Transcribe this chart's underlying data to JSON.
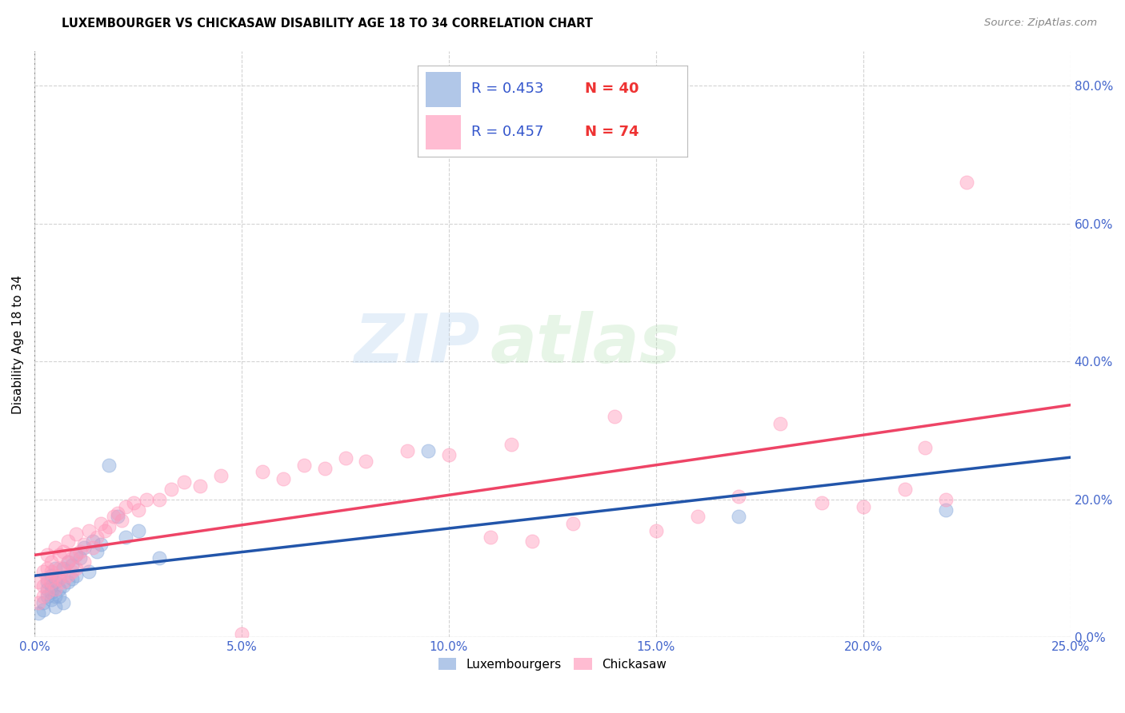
{
  "title": "LUXEMBOURGER VS CHICKASAW DISABILITY AGE 18 TO 34 CORRELATION CHART",
  "source": "Source: ZipAtlas.com",
  "ylabel": "Disability Age 18 to 34",
  "xlim": [
    0.0,
    0.25
  ],
  "ylim": [
    0.0,
    0.85
  ],
  "blue_color": "#88AADD",
  "pink_color": "#FF99BB",
  "blue_line_color": "#2255AA",
  "pink_line_color": "#EE4466",
  "legend_R_color": "#3355CC",
  "legend_N_color": "#EE3333",
  "watermark_zip": "ZIP",
  "watermark_atlas": "atlas",
  "legend_blue_R": "0.453",
  "legend_blue_N": "40",
  "legend_pink_R": "0.457",
  "legend_pink_N": "74",
  "blue_scatter_x": [
    0.001,
    0.002,
    0.002,
    0.003,
    0.003,
    0.003,
    0.004,
    0.004,
    0.004,
    0.004,
    0.005,
    0.005,
    0.005,
    0.005,
    0.006,
    0.006,
    0.006,
    0.007,
    0.007,
    0.007,
    0.008,
    0.008,
    0.009,
    0.009,
    0.01,
    0.01,
    0.011,
    0.012,
    0.013,
    0.014,
    0.015,
    0.016,
    0.018,
    0.02,
    0.022,
    0.025,
    0.03,
    0.095,
    0.17,
    0.22
  ],
  "blue_scatter_y": [
    0.035,
    0.04,
    0.05,
    0.06,
    0.07,
    0.08,
    0.055,
    0.065,
    0.075,
    0.09,
    0.045,
    0.06,
    0.08,
    0.1,
    0.06,
    0.07,
    0.085,
    0.05,
    0.075,
    0.1,
    0.08,
    0.11,
    0.085,
    0.105,
    0.09,
    0.12,
    0.115,
    0.13,
    0.095,
    0.14,
    0.125,
    0.135,
    0.25,
    0.175,
    0.145,
    0.155,
    0.115,
    0.27,
    0.175,
    0.185
  ],
  "pink_scatter_x": [
    0.001,
    0.001,
    0.002,
    0.002,
    0.002,
    0.003,
    0.003,
    0.003,
    0.003,
    0.004,
    0.004,
    0.004,
    0.005,
    0.005,
    0.005,
    0.006,
    0.006,
    0.006,
    0.007,
    0.007,
    0.007,
    0.008,
    0.008,
    0.008,
    0.009,
    0.009,
    0.01,
    0.01,
    0.01,
    0.011,
    0.012,
    0.012,
    0.013,
    0.014,
    0.015,
    0.016,
    0.017,
    0.018,
    0.019,
    0.02,
    0.021,
    0.022,
    0.024,
    0.025,
    0.027,
    0.03,
    0.033,
    0.036,
    0.04,
    0.045,
    0.05,
    0.055,
    0.06,
    0.065,
    0.07,
    0.075,
    0.08,
    0.09,
    0.1,
    0.11,
    0.115,
    0.12,
    0.13,
    0.14,
    0.15,
    0.16,
    0.17,
    0.18,
    0.19,
    0.2,
    0.21,
    0.215,
    0.22,
    0.225
  ],
  "pink_scatter_y": [
    0.05,
    0.08,
    0.06,
    0.075,
    0.095,
    0.065,
    0.085,
    0.1,
    0.12,
    0.08,
    0.095,
    0.11,
    0.07,
    0.09,
    0.13,
    0.085,
    0.1,
    0.12,
    0.08,
    0.1,
    0.125,
    0.09,
    0.11,
    0.14,
    0.095,
    0.115,
    0.1,
    0.12,
    0.15,
    0.125,
    0.11,
    0.135,
    0.155,
    0.13,
    0.145,
    0.165,
    0.155,
    0.16,
    0.175,
    0.18,
    0.17,
    0.19,
    0.195,
    0.185,
    0.2,
    0.2,
    0.215,
    0.225,
    0.22,
    0.235,
    0.005,
    0.24,
    0.23,
    0.25,
    0.245,
    0.26,
    0.255,
    0.27,
    0.265,
    0.145,
    0.28,
    0.14,
    0.165,
    0.32,
    0.155,
    0.175,
    0.205,
    0.31,
    0.195,
    0.19,
    0.215,
    0.275,
    0.2,
    0.66
  ]
}
